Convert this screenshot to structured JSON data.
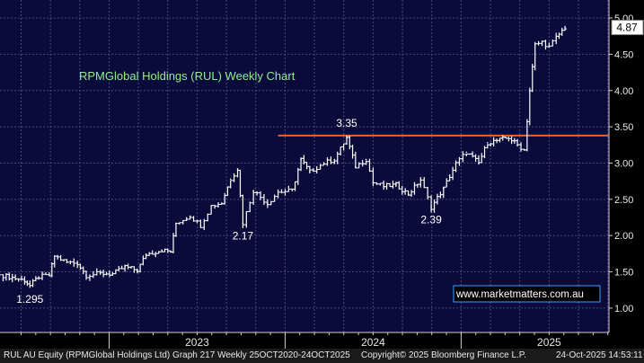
{
  "chart_data": {
    "type": "line",
    "title": "RPMGlobal Holdings (RUL) Weekly Chart",
    "y_axis": {
      "ticks": [
        1.0,
        1.5,
        2.0,
        2.5,
        3.0,
        3.5,
        4.0,
        4.5,
        5.0
      ],
      "tick_labels": [
        "1.00",
        "1.50",
        "2.00",
        "2.50",
        "3.00",
        "3.50",
        "4.00",
        "4.50",
        "5.00"
      ],
      "ylim": [
        0.85,
        5.1
      ],
      "position": "right"
    },
    "x_axis": {
      "tick_labels": [
        "2023",
        "2024",
        "2025"
      ],
      "xlim": [
        2022.38,
        2025.84
      ]
    },
    "grid": true,
    "series": [
      {
        "values": [
          [
            2022.38,
            1.46
          ],
          [
            2022.45,
            1.42
          ],
          [
            2022.52,
            1.38
          ],
          [
            2022.55,
            1.31
          ],
          [
            2022.6,
            1.43
          ],
          [
            2022.66,
            1.45
          ],
          [
            2022.69,
            1.72
          ],
          [
            2022.76,
            1.63
          ],
          [
            2022.82,
            1.62
          ],
          [
            2022.87,
            1.45
          ],
          [
            2022.95,
            1.48
          ],
          [
            2023.02,
            1.47
          ],
          [
            2023.09,
            1.57
          ],
          [
            2023.16,
            1.52
          ],
          [
            2023.21,
            1.74
          ],
          [
            2023.3,
            1.8
          ],
          [
            2023.35,
            1.78
          ],
          [
            2023.38,
            2.17
          ],
          [
            2023.46,
            2.27
          ],
          [
            2023.52,
            2.14
          ],
          [
            2023.58,
            2.41
          ],
          [
            2023.64,
            2.45
          ],
          [
            2023.69,
            2.78
          ],
          [
            2023.73,
            2.92
          ],
          [
            2023.76,
            2.17
          ],
          [
            2023.82,
            2.62
          ],
          [
            2023.9,
            2.44
          ],
          [
            2023.96,
            2.6
          ],
          [
            2024.04,
            2.62
          ],
          [
            2024.09,
            3.05
          ],
          [
            2024.14,
            2.88
          ],
          [
            2024.22,
            3.0
          ],
          [
            2024.28,
            3.05
          ],
          [
            2024.35,
            3.35
          ],
          [
            2024.4,
            2.95
          ],
          [
            2024.46,
            3.05
          ],
          [
            2024.5,
            2.73
          ],
          [
            2024.56,
            2.68
          ],
          [
            2024.63,
            2.7
          ],
          [
            2024.7,
            2.57
          ],
          [
            2024.77,
            2.77
          ],
          [
            2024.83,
            2.39
          ],
          [
            2024.9,
            2.65
          ],
          [
            2024.97,
            2.99
          ],
          [
            2025.03,
            3.15
          ],
          [
            2025.1,
            3.0
          ],
          [
            2025.15,
            3.28
          ],
          [
            2025.22,
            3.32
          ],
          [
            2025.27,
            3.35
          ],
          [
            2025.32,
            3.25
          ],
          [
            2025.36,
            3.18
          ],
          [
            2025.39,
            4.0
          ],
          [
            2025.42,
            4.63
          ],
          [
            2025.46,
            4.67
          ],
          [
            2025.5,
            4.6
          ],
          [
            2025.54,
            4.73
          ],
          [
            2025.59,
            4.87
          ]
        ]
      }
    ],
    "annotations": [
      {
        "text": "1.295",
        "x": 2022.55,
        "y": 1.295,
        "placement": "below"
      },
      {
        "text": "2.17",
        "x": 2023.76,
        "y": 2.17,
        "placement": "below"
      },
      {
        "text": "3.35",
        "x": 2024.35,
        "y": 3.35,
        "placement": "above"
      },
      {
        "text": "2.39",
        "x": 2024.83,
        "y": 2.39,
        "placement": "below"
      },
      {
        "text": "www.marketmatters.com.au",
        "placement": "bottom-right"
      }
    ],
    "reference_lines": [
      {
        "y": 3.38,
        "x_start": 2023.96,
        "x_end": 2025.84,
        "color": "#e8622c"
      }
    ],
    "last_price": {
      "text": "4.87",
      "y": 4.87
    }
  },
  "footer": {
    "left": "RUL AU Equity (RPMGlobal Holdings Ltd) Graph 217 Weekly 25OCT2020-24OCT2025",
    "middle": "Copyright© 2025 Bloomberg Finance L.P.",
    "right": "24-Oct-2025 14:53:11"
  },
  "colors": {
    "background": "#0b0b3b",
    "grid": "#4a4a7a",
    "price": "#ffffff",
    "title": "#90ee90",
    "resistance": "#e8622c",
    "watermark_border": "#3aa0ff"
  }
}
